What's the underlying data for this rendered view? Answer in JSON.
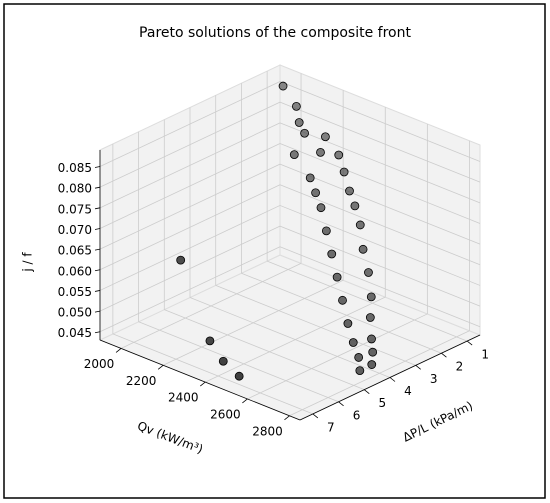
{
  "chart_data": {
    "type": "scatter3d",
    "title": "Pareto solutions of the composite front",
    "xlabel": "ΔP/L (kPa/m)",
    "ylabel": "Qv (kW/m³)",
    "zlabel": "j / f",
    "xlim": [
      0.5,
      7.5
    ],
    "xticks": [
      1,
      2,
      3,
      4,
      5,
      6,
      7
    ],
    "ylim": [
      1900,
      2850
    ],
    "yticks": [
      2000,
      2200,
      2400,
      2600,
      2800
    ],
    "zlim": [
      0.043,
      0.089
    ],
    "zticks": [
      0.045,
      {
        "value": 0.05,
        "label": "0.050"
      },
      0.055,
      {
        "value": 0.06,
        "label": "0.060"
      },
      0.065,
      {
        "value": 0.07,
        "label": "0.070"
      },
      0.075,
      {
        "value": 0.08,
        "label": "0.080"
      },
      0.085
    ],
    "grid": true,
    "color": "#3a3a3a",
    "x": [
      1.2,
      1.5,
      1.8,
      2.0,
      1.6,
      2.2,
      1.9,
      2.4,
      2.1,
      2.6,
      2.3,
      2.8,
      2.5,
      3.0,
      2.7,
      3.2,
      3.0,
      3.4,
      3.2,
      3.6,
      3.5,
      3.8,
      3.7,
      4.0,
      3.9,
      4.2,
      4.1,
      4.4,
      4.3,
      4.6,
      6.0,
      6.5,
      6.8,
      7.0
    ],
    "y": [
      2000,
      2100,
      2150,
      2200,
      2250,
      2300,
      2350,
      2200,
      2400,
      2300,
      2450,
      2350,
      2500,
      2400,
      2550,
      2450,
      2600,
      2500,
      2650,
      2550,
      2700,
      2600,
      2720,
      2650,
      2750,
      2700,
      2780,
      2750,
      2800,
      2780,
      2100,
      2300,
      2400,
      2500
    ],
    "z": [
      0.088,
      0.086,
      0.084,
      0.083,
      0.082,
      0.081,
      0.0805,
      0.079,
      0.078,
      0.076,
      0.075,
      0.074,
      0.073,
      0.072,
      0.07,
      0.068,
      0.066,
      0.064,
      0.062,
      0.06,
      0.058,
      0.056,
      0.054,
      0.052,
      0.05,
      0.049,
      0.048,
      0.047,
      0.046,
      0.045,
      0.062,
      0.048,
      0.046,
      0.045
    ]
  }
}
